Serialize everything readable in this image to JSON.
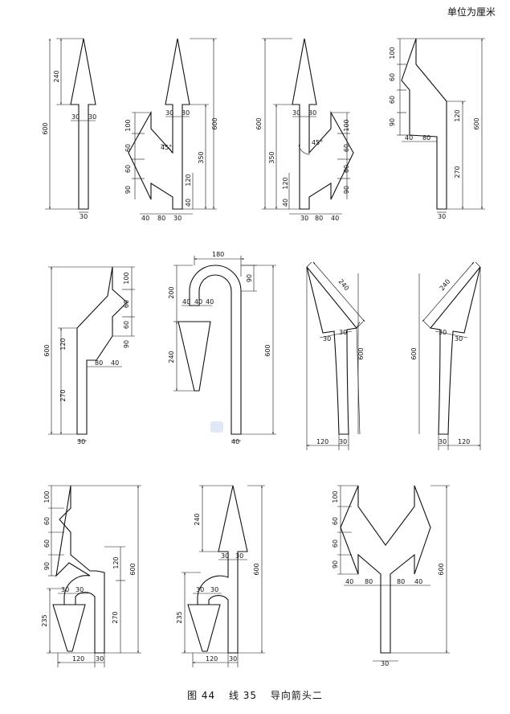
{
  "unit_note": "单位为厘米",
  "caption": {
    "figure": "图 44",
    "line": "线 35",
    "title": "导向箭头二"
  },
  "diagrams": [
    {
      "name": "straight-arrow",
      "labels": [
        "240",
        "600",
        "30",
        "30",
        "30"
      ]
    },
    {
      "name": "straight-or-left-turn-arrow",
      "labels": [
        "30",
        "30",
        "100",
        "60",
        "60",
        "90",
        "45°",
        "120",
        "350",
        "40",
        "600",
        "40",
        "80",
        "30"
      ]
    },
    {
      "name": "straight-or-right-turn-arrow",
      "labels": [
        "30",
        "30",
        "100",
        "60",
        "60",
        "90",
        "45°",
        "120",
        "350",
        "40",
        "600",
        "30",
        "80",
        "40"
      ]
    },
    {
      "name": "straight-or-merge-left-arrow",
      "labels": [
        "100",
        "60",
        "60",
        "90",
        "40",
        "80",
        "120",
        "270",
        "600",
        "30"
      ]
    },
    {
      "name": "merge-left-arrow",
      "labels": [
        "100",
        "60",
        "60",
        "90",
        "120",
        "80",
        "40",
        "270",
        "600",
        "30"
      ]
    },
    {
      "name": "u-turn-arrow",
      "labels": [
        "180",
        "90",
        "200",
        "40",
        "40",
        "40",
        "240",
        "600",
        "40"
      ]
    },
    {
      "name": "curve-left-arrow",
      "labels": [
        "240",
        "30",
        "30",
        "600",
        "120",
        "30"
      ]
    },
    {
      "name": "curve-right-arrow",
      "labels": [
        "240",
        "30",
        "30",
        "600",
        "30",
        "120"
      ]
    },
    {
      "name": "merge-left-and-u-turn-arrow",
      "labels": [
        "100",
        "60",
        "60",
        "90",
        "30",
        "30",
        "120",
        "235",
        "270",
        "600",
        "120",
        "30"
      ]
    },
    {
      "name": "straight-and-u-turn-arrow",
      "labels": [
        "240",
        "30",
        "30",
        "30",
        "30",
        "235",
        "600",
        "120",
        "30"
      ]
    },
    {
      "name": "left-or-right-turn-arrow",
      "labels": [
        "100",
        "60",
        "60",
        "90",
        "40",
        "80",
        "80",
        "40",
        "600",
        "30"
      ]
    }
  ]
}
